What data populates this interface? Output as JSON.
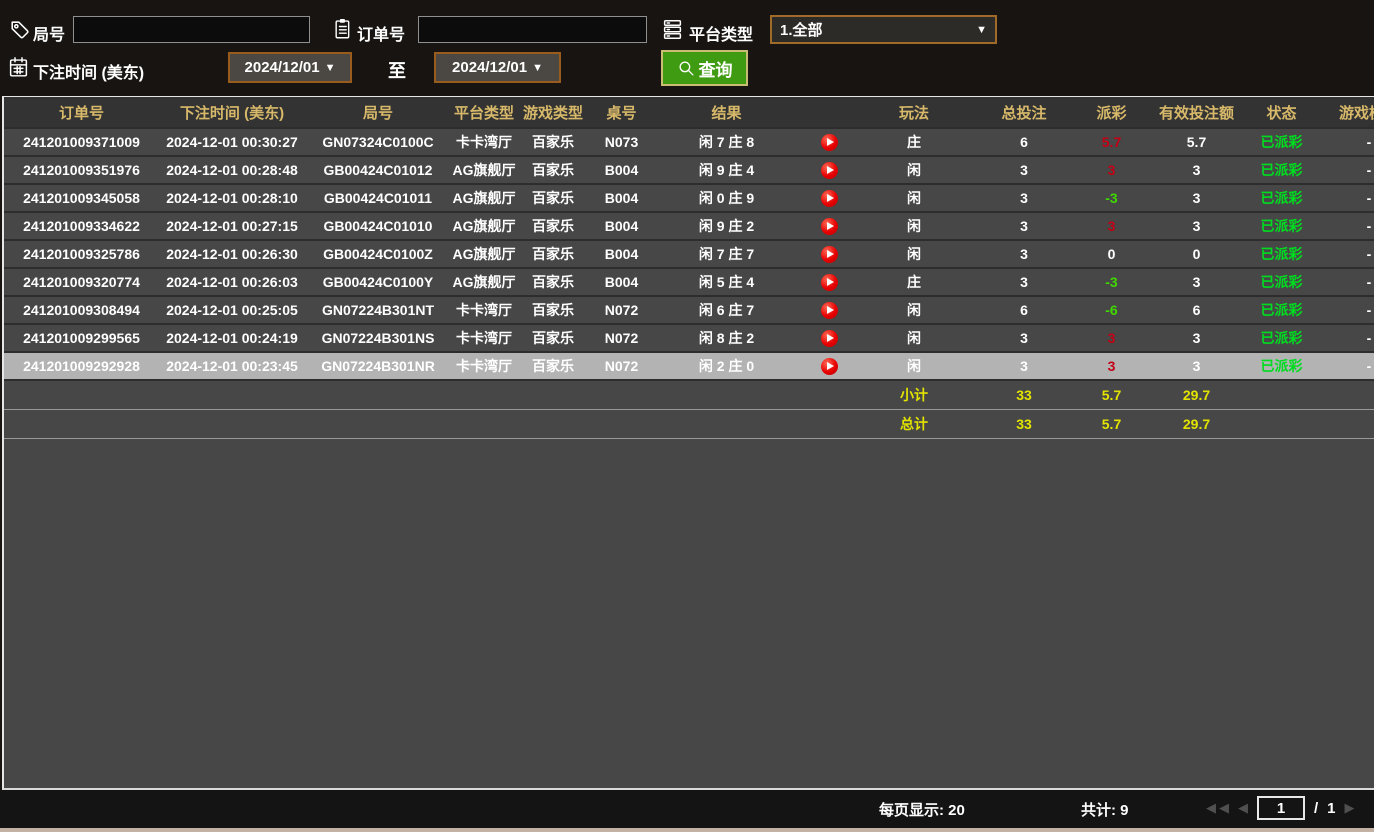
{
  "colors": {
    "header_text": "#d8b96a",
    "payout_positive": "#c30014",
    "payout_negative": "#3fd800",
    "status_paid": "#00dc20",
    "summary_yellow": "#e3e300",
    "date_border": "#9a5c1d",
    "query_green": "#3f9b11",
    "selected_row": "#b3b3b3"
  },
  "filters": {
    "round_label": "局号",
    "round_value": "",
    "order_label": "订单号",
    "order_value": "",
    "platform_label": "平台类型",
    "platform_value": "1.全部",
    "bet_time_label": "下注时间 (美东)",
    "date_from": "2024/12/01",
    "to_label": "至",
    "date_to": "2024/12/01",
    "query_label": "查询"
  },
  "icons": {
    "chevron_down": "▼",
    "first_page": "◀◀",
    "prev_page": "◀",
    "next_page": "▶"
  },
  "table": {
    "headers": [
      "订单号",
      "下注时间 (美东)",
      "局号",
      "平台类型",
      "游戏类型",
      "桌号",
      "结果",
      "",
      "玩法",
      "总投注",
      "派彩",
      "有效投注额",
      "状态",
      "游戏模式"
    ],
    "rows": [
      {
        "order_no": "241201009371009",
        "bet_time": "2024-12-01 00:30:27",
        "round_no": "GN07324C0100C",
        "platform": "卡卡湾厅",
        "game_type": "百家乐",
        "table_no": "N073",
        "result": "闲 7 庄 8",
        "play": "庄",
        "total_bet": "6",
        "payout": "5.7",
        "payout_color": "pos",
        "valid_bet": "5.7",
        "status": "已派彩",
        "game_mode": "-",
        "highlighted": false
      },
      {
        "order_no": "241201009351976",
        "bet_time": "2024-12-01 00:28:48",
        "round_no": "GB00424C01012",
        "platform": "AG旗舰厅",
        "game_type": "百家乐",
        "table_no": "B004",
        "result": "闲 9 庄 4",
        "play": "闲",
        "total_bet": "3",
        "payout": "3",
        "payout_color": "pos",
        "valid_bet": "3",
        "status": "已派彩",
        "game_mode": "-",
        "highlighted": false
      },
      {
        "order_no": "241201009345058",
        "bet_time": "2024-12-01 00:28:10",
        "round_no": "GB00424C01011",
        "platform": "AG旗舰厅",
        "game_type": "百家乐",
        "table_no": "B004",
        "result": "闲 0 庄 9",
        "play": "闲",
        "total_bet": "3",
        "payout": "-3",
        "payout_color": "neg",
        "valid_bet": "3",
        "status": "已派彩",
        "game_mode": "-",
        "highlighted": false
      },
      {
        "order_no": "241201009334622",
        "bet_time": "2024-12-01 00:27:15",
        "round_no": "GB00424C01010",
        "platform": "AG旗舰厅",
        "game_type": "百家乐",
        "table_no": "B004",
        "result": "闲 9 庄 2",
        "play": "闲",
        "total_bet": "3",
        "payout": "3",
        "payout_color": "pos",
        "valid_bet": "3",
        "status": "已派彩",
        "game_mode": "-",
        "highlighted": false
      },
      {
        "order_no": "241201009325786",
        "bet_time": "2024-12-01 00:26:30",
        "round_no": "GB00424C0100Z",
        "platform": "AG旗舰厅",
        "game_type": "百家乐",
        "table_no": "B004",
        "result": "闲 7 庄 7",
        "play": "闲",
        "total_bet": "3",
        "payout": "0",
        "payout_color": "zero",
        "valid_bet": "0",
        "status": "已派彩",
        "game_mode": "-",
        "highlighted": false
      },
      {
        "order_no": "241201009320774",
        "bet_time": "2024-12-01 00:26:03",
        "round_no": "GB00424C0100Y",
        "platform": "AG旗舰厅",
        "game_type": "百家乐",
        "table_no": "B004",
        "result": "闲 5 庄 4",
        "play": "庄",
        "total_bet": "3",
        "payout": "-3",
        "payout_color": "neg",
        "valid_bet": "3",
        "status": "已派彩",
        "game_mode": "-",
        "highlighted": false
      },
      {
        "order_no": "241201009308494",
        "bet_time": "2024-12-01 00:25:05",
        "round_no": "GN07224B301NT",
        "platform": "卡卡湾厅",
        "game_type": "百家乐",
        "table_no": "N072",
        "result": "闲 6 庄 7",
        "play": "闲",
        "total_bet": "6",
        "payout": "-6",
        "payout_color": "neg",
        "valid_bet": "6",
        "status": "已派彩",
        "game_mode": "-",
        "highlighted": false
      },
      {
        "order_no": "241201009299565",
        "bet_time": "2024-12-01 00:24:19",
        "round_no": "GN07224B301NS",
        "platform": "卡卡湾厅",
        "game_type": "百家乐",
        "table_no": "N072",
        "result": "闲 8 庄 2",
        "play": "闲",
        "total_bet": "3",
        "payout": "3",
        "payout_color": "pos",
        "valid_bet": "3",
        "status": "已派彩",
        "game_mode": "-",
        "highlighted": false
      },
      {
        "order_no": "241201009292928",
        "bet_time": "2024-12-01 00:23:45",
        "round_no": "GN07224B301NR",
        "platform": "卡卡湾厅",
        "game_type": "百家乐",
        "table_no": "N072",
        "result": "闲 2 庄 0",
        "play": "闲",
        "total_bet": "3",
        "payout": "3",
        "payout_color": "pos",
        "valid_bet": "3",
        "status": "已派彩",
        "game_mode": "-",
        "highlighted": true
      }
    ],
    "subtotal": {
      "label": "小计",
      "total_bet": "33",
      "payout": "5.7",
      "valid_bet": "29.7"
    },
    "total": {
      "label": "总计",
      "total_bet": "33",
      "payout": "5.7",
      "valid_bet": "29.7"
    }
  },
  "footer": {
    "per_page": "每页显示: 20",
    "total_count": "共计: 9",
    "page_value": "1",
    "page_separator": "/",
    "page_total": "1"
  }
}
